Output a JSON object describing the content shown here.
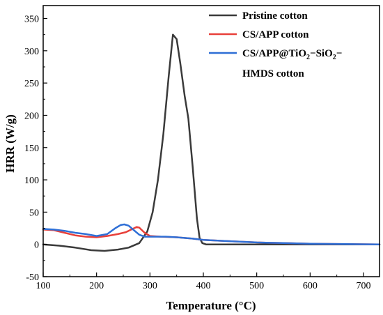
{
  "chart_data": {
    "type": "line",
    "xlabel": "Temperature (°C)",
    "ylabel": "HRR (W/g)",
    "xlim": [
      100,
      730
    ],
    "ylim": [
      -50,
      370
    ],
    "x_ticks": [
      100,
      200,
      300,
      400,
      500,
      600,
      700
    ],
    "y_ticks": [
      -50,
      0,
      50,
      100,
      150,
      200,
      250,
      300,
      350
    ],
    "grid": false,
    "legend_position": "top-right",
    "legend": {
      "pristine": "Pristine cotton",
      "csapp": "CS/APP cotton",
      "tio2_line1": "CS/APP@TiO",
      "tio2_sub1": "2",
      "tio2_mid": "−SiO",
      "tio2_sub2": "2",
      "tio2_end": "−",
      "tio2_line2": "HMDS cotton"
    },
    "series": [
      {
        "name": "Pristine cotton",
        "color": "#3a3a3a",
        "x": [
          100,
          130,
          160,
          190,
          215,
          240,
          260,
          280,
          295,
          305,
          315,
          325,
          335,
          343,
          350,
          357,
          365,
          372,
          380,
          388,
          393,
          398,
          405,
          430,
          500,
          730
        ],
        "y": [
          0,
          -2,
          -5,
          -9,
          -10,
          -8,
          -5,
          2,
          20,
          50,
          100,
          170,
          260,
          325,
          318,
          280,
          230,
          195,
          120,
          40,
          10,
          2,
          0,
          0,
          0,
          0
        ]
      },
      {
        "name": "CS/APP cotton",
        "color": "#e8403a",
        "x": [
          100,
          120,
          140,
          160,
          180,
          200,
          220,
          240,
          255,
          265,
          275,
          280,
          290,
          300,
          320,
          350,
          380,
          400,
          450,
          500,
          550,
          600,
          730
        ],
        "y": [
          23,
          22,
          18,
          14,
          12,
          11,
          13,
          16,
          19,
          23,
          27,
          26,
          18,
          13,
          12,
          11,
          9,
          7,
          5,
          3,
          2,
          1,
          0
        ]
      },
      {
        "name": "CS/APP@TiO2−SiO2−HMDS cotton",
        "color": "#2f6fd6",
        "x": [
          100,
          120,
          140,
          160,
          180,
          200,
          220,
          235,
          245,
          252,
          260,
          270,
          280,
          290,
          300,
          330,
          350,
          380,
          400,
          450,
          500,
          550,
          600,
          730
        ],
        "y": [
          24,
          23,
          21,
          18,
          16,
          13,
          16,
          25,
          30,
          31,
          29,
          22,
          15,
          12,
          12,
          12,
          11,
          9,
          7,
          5,
          3,
          2,
          1,
          0
        ]
      }
    ]
  }
}
